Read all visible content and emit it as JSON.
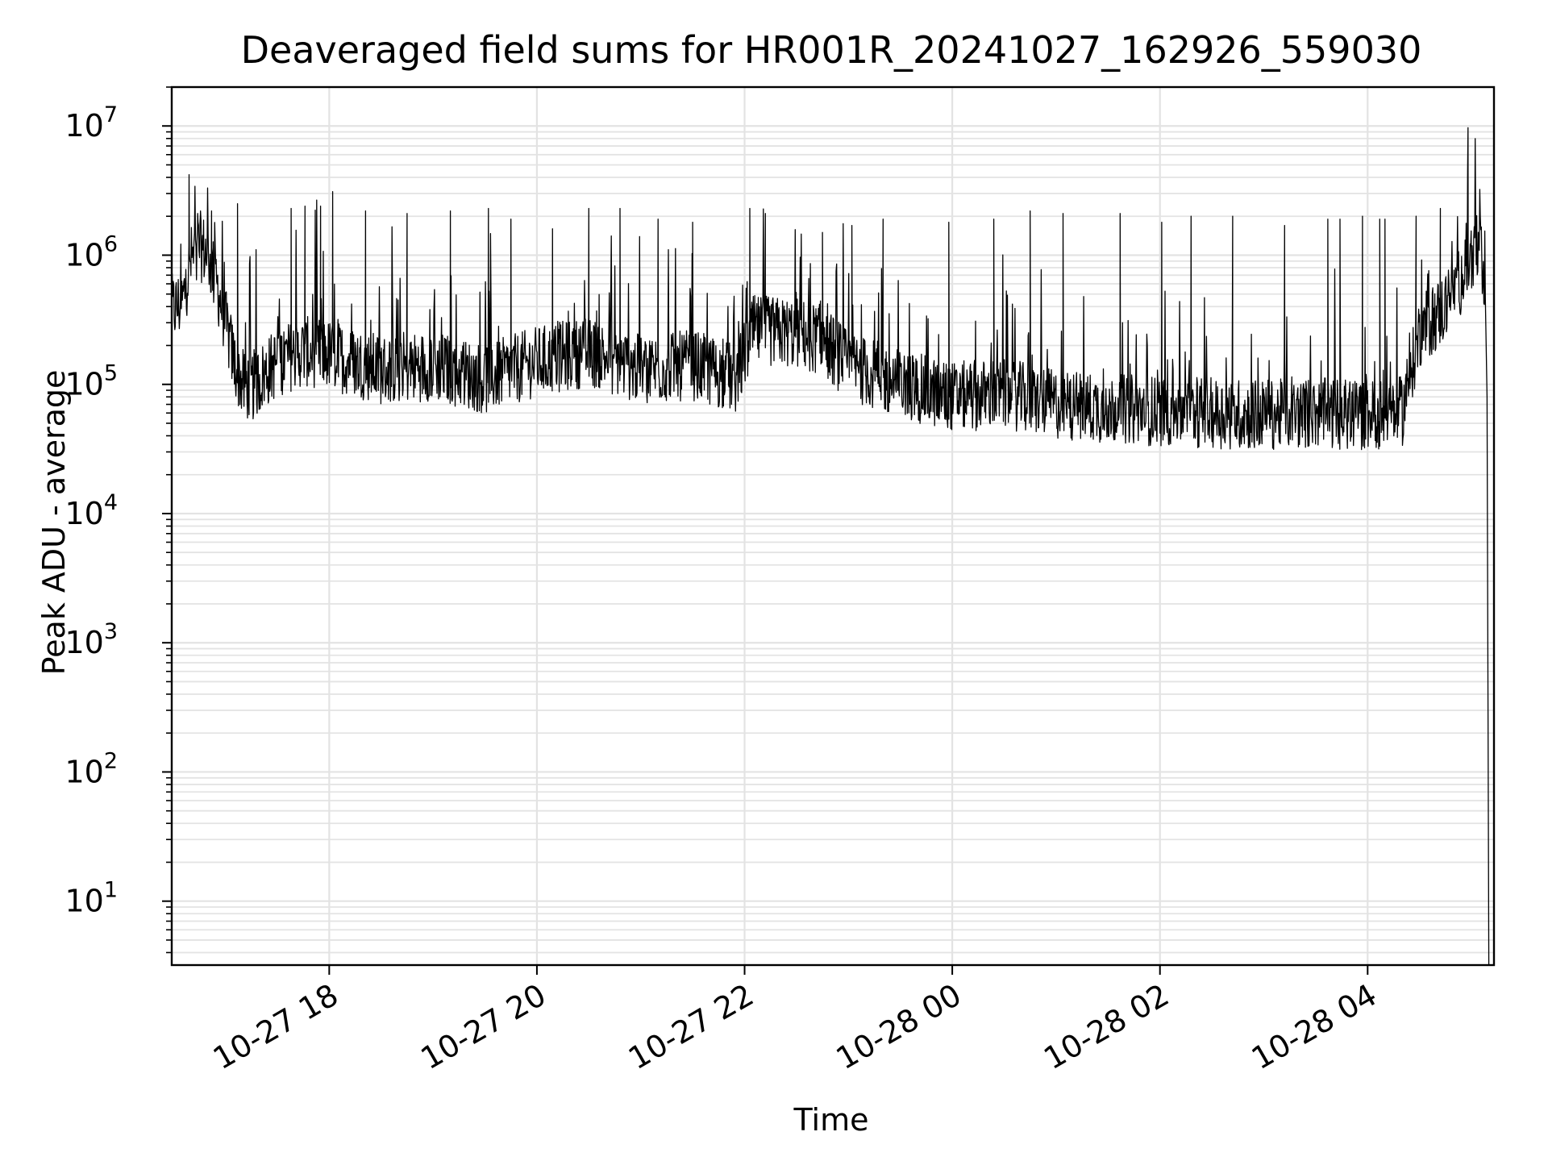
{
  "chart_data": {
    "type": "line",
    "title": "Deaveraged field sums for HR001R_20241027_162926_559030",
    "xlabel": "Time",
    "ylabel": "Peak ADU - average",
    "yscale": "log",
    "ylim": [
      3.2,
      20000000
    ],
    "xlim": [
      "2024-10-27 16:29",
      "2024-10-28 05:13"
    ],
    "grid": true,
    "x_ticks": [
      {
        "label": "10-27 18",
        "time": "2024-10-27 18:00"
      },
      {
        "label": "10-27 20",
        "time": "2024-10-27 20:00"
      },
      {
        "label": "10-27 22",
        "time": "2024-10-27 22:00"
      },
      {
        "label": "10-28 00",
        "time": "2024-10-28 00:00"
      },
      {
        "label": "10-28 02",
        "time": "2024-10-28 02:00"
      },
      {
        "label": "10-28 04",
        "time": "2024-10-28 04:00"
      }
    ],
    "y_ticks": [
      {
        "base": "10",
        "exp": "1",
        "value": 10
      },
      {
        "base": "10",
        "exp": "2",
        "value": 100
      },
      {
        "base": "10",
        "exp": "3",
        "value": 1000
      },
      {
        "base": "10",
        "exp": "4",
        "value": 10000
      },
      {
        "base": "10",
        "exp": "5",
        "value": 100000
      },
      {
        "base": "10",
        "exp": "6",
        "value": 1000000
      },
      {
        "base": "10",
        "exp": "7",
        "value": 10000000
      }
    ],
    "series": [
      {
        "color": "#000000",
        "baseline_x": [
          "2024-10-27 16:29",
          "2024-10-27 16:35",
          "2024-10-27 16:40",
          "2024-10-27 16:45",
          "2024-10-27 16:50",
          "2024-10-27 16:55",
          "2024-10-27 17:00",
          "2024-10-27 17:05",
          "2024-10-27 17:10",
          "2024-10-27 17:15",
          "2024-10-27 17:20",
          "2024-10-27 17:30",
          "2024-10-27 17:45",
          "2024-10-27 18:00",
          "2024-10-27 18:30",
          "2024-10-27 19:00",
          "2024-10-27 19:30",
          "2024-10-27 20:00",
          "2024-10-27 20:30",
          "2024-10-27 21:00",
          "2024-10-27 21:30",
          "2024-10-27 21:55",
          "2024-10-27 22:05",
          "2024-10-27 22:30",
          "2024-10-27 22:45",
          "2024-10-27 23:00",
          "2024-10-27 23:30",
          "2024-10-28 00:00",
          "2024-10-28 00:30",
          "2024-10-28 01:00",
          "2024-10-28 01:30",
          "2024-10-28 02:00",
          "2024-10-28 02:30",
          "2024-10-28 03:00",
          "2024-10-28 03:30",
          "2024-10-28 04:00",
          "2024-10-28 04:20",
          "2024-10-28 04:30",
          "2024-10-28 04:45",
          "2024-10-28 04:55",
          "2024-10-28 05:00",
          "2024-10-28 05:05",
          "2024-10-28 05:08",
          "2024-10-28 05:09",
          "2024-10-28 05:10"
        ],
        "baseline_y": [
          380000,
          420000,
          900000,
          1200000,
          1000000,
          600000,
          300000,
          150000,
          100000,
          95000,
          110000,
          150000,
          180000,
          170000,
          130000,
          140000,
          110000,
          150000,
          180000,
          130000,
          140000,
          110000,
          260000,
          250000,
          220000,
          140000,
          100000,
          80000,
          85000,
          70000,
          65000,
          62000,
          60000,
          58000,
          60000,
          58000,
          62000,
          250000,
          400000,
          700000,
          1000000,
          1200000,
          300000,
          80000,
          3
        ]
      }
    ],
    "peaks": {
      "x": [
        "2024-10-27 16:39",
        "2024-10-27 16:44",
        "2024-10-27 16:52",
        "2024-10-27 17:07",
        "2024-10-27 17:38",
        "2024-10-27 17:46",
        "2024-10-27 17:55",
        "2024-10-27 18:02",
        "2024-10-27 18:21",
        "2024-10-27 18:45",
        "2024-10-27 19:10",
        "2024-10-27 19:32",
        "2024-10-27 19:45",
        "2024-10-27 20:09",
        "2024-10-27 20:30",
        "2024-10-27 20:48",
        "2024-10-27 21:10",
        "2024-10-27 21:30",
        "2024-10-27 22:03",
        "2024-10-27 22:12",
        "2024-10-27 22:45",
        "2024-10-27 23:02",
        "2024-10-27 23:20",
        "2024-10-27 23:58",
        "2024-10-28 00:24",
        "2024-10-28 00:45",
        "2024-10-28 01:04",
        "2024-10-28 01:37",
        "2024-10-28 02:01",
        "2024-10-28 02:18",
        "2024-10-28 02:42",
        "2024-10-28 03:12",
        "2024-10-28 03:37",
        "2024-10-28 03:44",
        "2024-10-28 03:57",
        "2024-10-28 04:07",
        "2024-10-28 04:10",
        "2024-10-28 04:28",
        "2024-10-28 04:42",
        "2024-10-28 04:58"
      ],
      "y": [
        4200000,
        2100000,
        2200000,
        2500000,
        2300000,
        2400000,
        2400000,
        3100000,
        2200000,
        2100000,
        2200000,
        2300000,
        1900000,
        1600000,
        2300000,
        2300000,
        1900000,
        1800000,
        2300000,
        2100000,
        1500000,
        1700000,
        1900000,
        1800000,
        1900000,
        2200000,
        2100000,
        2100000,
        1800000,
        2000000,
        2000000,
        1700000,
        1900000,
        1900000,
        2000000,
        1900000,
        1900000,
        2000000,
        2300000,
        9700000
      ]
    }
  }
}
